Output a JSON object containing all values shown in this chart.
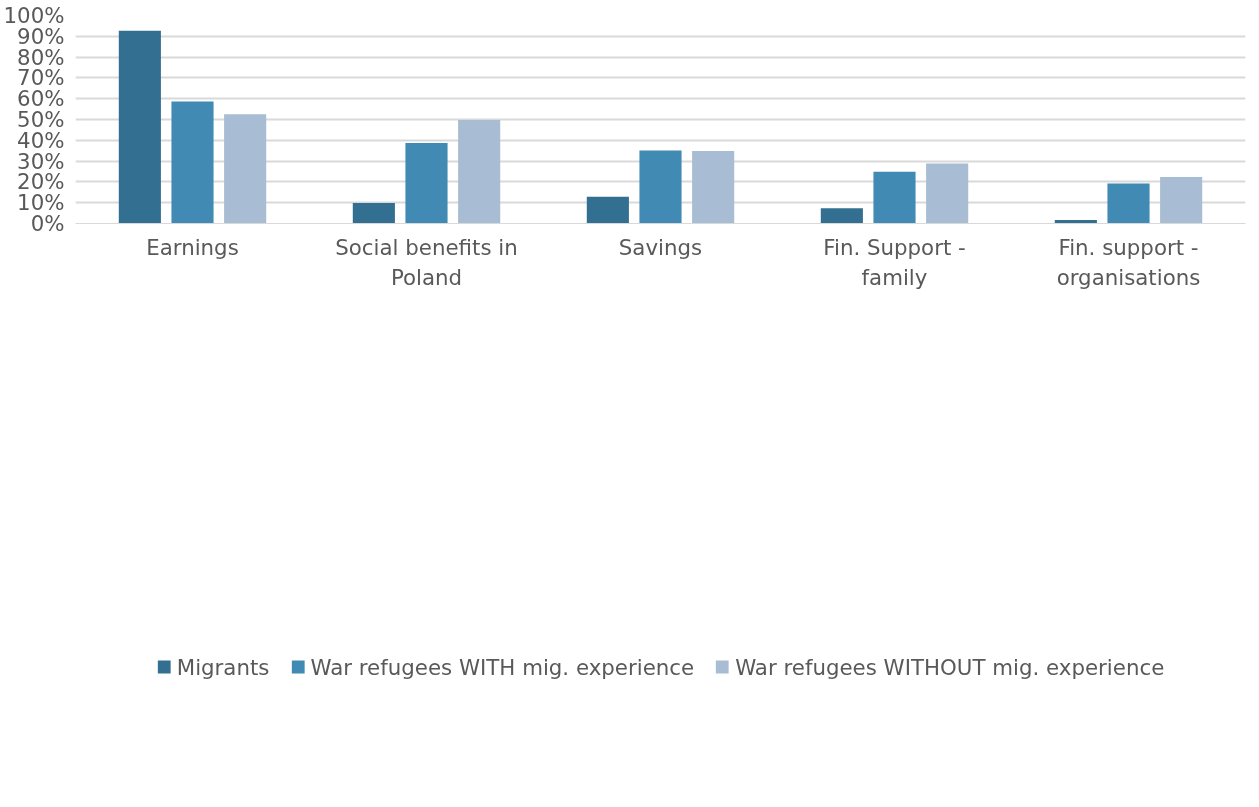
{
  "chart_data": {
    "type": "bar",
    "categories": [
      "Earnings",
      "Social benefits in Poland",
      "Savings",
      "Fin. Support - family",
      "Fin. support - organisations"
    ],
    "series": [
      {
        "name": "Migrants",
        "color": "#336f91",
        "values": [
          92.7,
          9.8,
          12.9,
          7.3,
          1.7
        ]
      },
      {
        "name": "War refugees WITH mig. experience",
        "color": "#408ab4",
        "values": [
          58.6,
          38.7,
          35.1,
          24.9,
          19.2
        ]
      },
      {
        "name": "War refugees WITHOUT mig. experience",
        "color": "#a8bdd4",
        "values": [
          52.5,
          49.7,
          34.9,
          28.9,
          22.4
        ]
      }
    ],
    "ylim": [
      0,
      100
    ],
    "yticks": [
      {
        "value": 0,
        "label": "0%"
      },
      {
        "value": 10,
        "label": "10%"
      },
      {
        "value": 20,
        "label": "20%"
      },
      {
        "value": 30,
        "label": "30%"
      },
      {
        "value": 40,
        "label": "40%"
      },
      {
        "value": 50,
        "label": "50%"
      },
      {
        "value": 60,
        "label": "60%"
      },
      {
        "value": 70,
        "label": "70%"
      },
      {
        "value": 80,
        "label": "80%"
      },
      {
        "value": 90,
        "label": "90%"
      },
      {
        "value": 100,
        "label": "100%"
      }
    ],
    "grid": "y",
    "legend": "bottom"
  }
}
